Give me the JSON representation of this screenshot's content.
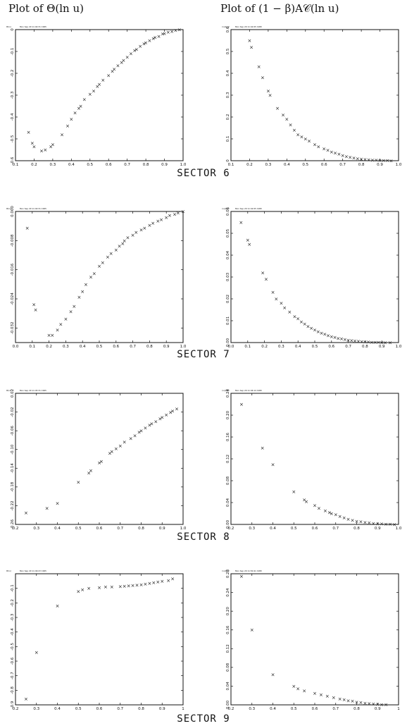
{
  "headers": {
    "left": "Plot of Θ(ln u)",
    "right": "Plot of (1 − β)A𝒞(ln u)"
  },
  "colors": {
    "ink": "#111111",
    "background": "#ffffff"
  },
  "chart_data": [
    {
      "type": "scatter",
      "sector": "SECTOR 6",
      "marker": "×",
      "stamp": "Mon Sep 29 11:40:31 1995",
      "corner": "Θ(ln)",
      "xlim": [
        0.1,
        1.0
      ],
      "ylim": [
        -0.6,
        0.0
      ],
      "xticks": [
        0.1,
        0.2,
        0.3,
        0.4,
        0.5,
        0.6,
        0.7,
        0.8,
        0.9,
        1.0
      ],
      "xtick_labels": [
        "0.1",
        "0.2",
        "0.3",
        "0.4",
        "0.5",
        "0.6",
        "0.7",
        "0.8",
        "0.9",
        "1.0"
      ],
      "yticks": [
        -0.6,
        -0.5,
        -0.4,
        -0.3,
        -0.2,
        -0.1,
        0.0
      ],
      "ytick_labels": [
        "-0.6",
        "-0.5",
        "-0.4",
        "-0.3",
        "-0.2",
        "-0.1",
        "0"
      ],
      "x": [
        0.17,
        0.19,
        0.2,
        0.24,
        0.26,
        0.29,
        0.3,
        0.35,
        0.38,
        0.4,
        0.42,
        0.44,
        0.45,
        0.47,
        0.5,
        0.52,
        0.54,
        0.55,
        0.57,
        0.6,
        0.62,
        0.63,
        0.65,
        0.67,
        0.68,
        0.7,
        0.72,
        0.74,
        0.75,
        0.77,
        0.79,
        0.8,
        0.82,
        0.84,
        0.85,
        0.87,
        0.89,
        0.9,
        0.92,
        0.94,
        0.96,
        0.98
      ],
      "y": [
        -0.47,
        -0.52,
        -0.535,
        -0.555,
        -0.55,
        -0.535,
        -0.525,
        -0.48,
        -0.44,
        -0.41,
        -0.38,
        -0.36,
        -0.35,
        -0.32,
        -0.295,
        -0.28,
        -0.26,
        -0.25,
        -0.23,
        -0.21,
        -0.19,
        -0.18,
        -0.165,
        -0.15,
        -0.14,
        -0.125,
        -0.11,
        -0.095,
        -0.09,
        -0.075,
        -0.065,
        -0.06,
        -0.05,
        -0.04,
        -0.035,
        -0.03,
        -0.02,
        -0.018,
        -0.012,
        -0.008,
        -0.004,
        0.0
      ]
    },
    {
      "type": "scatter",
      "sector": "SECTOR 6",
      "marker": "×",
      "stamp": "Mon Sep 29 11:42:05 1995",
      "corner": "(1-β)A𝒞",
      "xlim": [
        0.1,
        1.0
      ],
      "ylim": [
        0.0,
        0.6
      ],
      "xticks": [
        0.1,
        0.2,
        0.3,
        0.4,
        0.5,
        0.6,
        0.7,
        0.8,
        0.9,
        1.0
      ],
      "xtick_labels": [
        "0.1",
        "0.2",
        "0.3",
        "0.4",
        "0.5",
        "0.6",
        "0.7",
        "0.8",
        "0.9",
        "1.0"
      ],
      "yticks": [
        0,
        0.1,
        0.2,
        0.3,
        0.4,
        0.5,
        0.6
      ],
      "ytick_labels": [
        "0",
        "0.1",
        "0.2",
        "0.3",
        "0.4",
        "0.5",
        "0.6"
      ],
      "x": [
        0.2,
        0.21,
        0.25,
        0.27,
        0.3,
        0.31,
        0.35,
        0.38,
        0.4,
        0.42,
        0.44,
        0.46,
        0.48,
        0.5,
        0.52,
        0.55,
        0.57,
        0.6,
        0.62,
        0.64,
        0.66,
        0.68,
        0.7,
        0.72,
        0.74,
        0.76,
        0.78,
        0.8,
        0.82,
        0.84,
        0.86,
        0.88,
        0.9,
        0.92,
        0.94,
        0.96
      ],
      "y": [
        0.55,
        0.52,
        0.43,
        0.38,
        0.32,
        0.3,
        0.24,
        0.21,
        0.19,
        0.165,
        0.14,
        0.12,
        0.11,
        0.1,
        0.09,
        0.075,
        0.065,
        0.055,
        0.048,
        0.04,
        0.035,
        0.03,
        0.025,
        0.02,
        0.016,
        0.013,
        0.01,
        0.008,
        0.006,
        0.005,
        0.004,
        0.003,
        0.002,
        0.0015,
        0.001,
        0.0005
      ]
    },
    {
      "type": "scatter",
      "sector": "SECTOR 7",
      "marker": "×",
      "stamp": "Mon Sep 29 11:40:31 1995",
      "corner": "Θ(ln)",
      "xlim": [
        0.0,
        1.0
      ],
      "ylim": [
        -0.036,
        0.0
      ],
      "xticks": [
        0,
        0.1,
        0.2,
        0.3,
        0.4,
        0.5,
        0.6,
        0.7,
        0.8,
        0.9,
        1.0
      ],
      "xtick_labels": [
        "0.0",
        "0.1",
        "0.2",
        "0.3",
        "0.4",
        "0.5",
        "0.6",
        "0.7",
        "0.8",
        "0.9",
        "1.0"
      ],
      "yticks": [
        -0.032,
        -0.024,
        -0.016,
        -0.008,
        0.0
      ],
      "ytick_labels": [
        "-0.032",
        "-0.024",
        "-0.016",
        "-0.008",
        "0.000"
      ],
      "x": [
        0.07,
        0.11,
        0.12,
        0.2,
        0.22,
        0.25,
        0.27,
        0.3,
        0.33,
        0.35,
        0.38,
        0.4,
        0.42,
        0.45,
        0.47,
        0.5,
        0.52,
        0.55,
        0.57,
        0.6,
        0.62,
        0.64,
        0.65,
        0.67,
        0.7,
        0.72,
        0.75,
        0.77,
        0.8,
        0.82,
        0.85,
        0.87,
        0.9,
        0.92,
        0.95,
        0.97,
        1.0
      ],
      "y": [
        -0.0045,
        -0.0255,
        -0.027,
        -0.034,
        -0.034,
        -0.0325,
        -0.031,
        -0.0295,
        -0.0275,
        -0.026,
        -0.0235,
        -0.022,
        -0.02,
        -0.018,
        -0.017,
        -0.015,
        -0.014,
        -0.0125,
        -0.0115,
        -0.0105,
        -0.0095,
        -0.0088,
        -0.008,
        -0.0072,
        -0.0065,
        -0.0057,
        -0.005,
        -0.0045,
        -0.0038,
        -0.0032,
        -0.0026,
        -0.0022,
        -0.0016,
        -0.0011,
        -0.0008,
        -0.0004,
        0.0
      ]
    },
    {
      "type": "scatter",
      "sector": "SECTOR 7",
      "marker": "×",
      "stamp": "Mon Sep 29 11:42:05 1995",
      "corner": "(1-β)A𝒞",
      "xlim": [
        0.0,
        1.0
      ],
      "ylim": [
        0.0,
        0.06
      ],
      "xticks": [
        0,
        0.1,
        0.2,
        0.3,
        0.4,
        0.5,
        0.6,
        0.7,
        0.8,
        0.9,
        1.0
      ],
      "xtick_labels": [
        "0.0",
        "0.1",
        "0.2",
        "0.3",
        "0.4",
        "0.5",
        "0.6",
        "0.7",
        "0.8",
        "0.9",
        "1.0"
      ],
      "yticks": [
        0,
        0.01,
        0.02,
        0.03,
        0.04,
        0.05,
        0.06
      ],
      "ytick_labels": [
        "0.00",
        "0.01",
        "0.02",
        "0.03",
        "0.04",
        "0.05",
        "0.06"
      ],
      "x": [
        0.06,
        0.1,
        0.11,
        0.19,
        0.21,
        0.25,
        0.27,
        0.3,
        0.32,
        0.35,
        0.38,
        0.4,
        0.42,
        0.44,
        0.46,
        0.48,
        0.5,
        0.52,
        0.54,
        0.56,
        0.58,
        0.6,
        0.62,
        0.64,
        0.66,
        0.68,
        0.7,
        0.72,
        0.74,
        0.76,
        0.78,
        0.8,
        0.82,
        0.84,
        0.86,
        0.88,
        0.9,
        0.92,
        0.95
      ],
      "y": [
        0.055,
        0.047,
        0.045,
        0.032,
        0.029,
        0.023,
        0.02,
        0.018,
        0.016,
        0.014,
        0.012,
        0.011,
        0.0095,
        0.0085,
        0.0075,
        0.0066,
        0.0058,
        0.005,
        0.0044,
        0.0038,
        0.0033,
        0.0028,
        0.0024,
        0.002,
        0.0017,
        0.0014,
        0.0012,
        0.001,
        0.0008,
        0.0006,
        0.0005,
        0.0004,
        0.0003,
        0.0002,
        0.00015,
        0.0001,
        7e-05,
        4e-05,
        2e-05
      ]
    },
    {
      "type": "scatter",
      "sector": "SECTOR 8",
      "marker": "×",
      "stamp": "Mon Sep 29 11:45:31 1995",
      "corner": "Θ(ln)",
      "xlim": [
        0.2,
        1.0
      ],
      "ylim": [
        -0.26,
        0.02
      ],
      "xticks": [
        0.2,
        0.3,
        0.4,
        0.5,
        0.6,
        0.7,
        0.8,
        0.9,
        1.0
      ],
      "xtick_labels": [
        "0.2",
        "0.3",
        "0.4",
        "0.5",
        "0.6",
        "0.7",
        "0.8",
        "0.9",
        "1.0"
      ],
      "yticks": [
        -0.26,
        -0.22,
        -0.18,
        -0.14,
        -0.1,
        -0.06,
        -0.02,
        0.02
      ],
      "ytick_labels": [
        "-0.26",
        "-0.22",
        "-0.18",
        "-0.14",
        "-0.10",
        "-0.06",
        "-0.02",
        "0.02"
      ],
      "x": [
        0.25,
        0.35,
        0.4,
        0.5,
        0.55,
        0.56,
        0.6,
        0.61,
        0.65,
        0.66,
        0.68,
        0.7,
        0.72,
        0.75,
        0.77,
        0.79,
        0.8,
        0.82,
        0.84,
        0.85,
        0.87,
        0.89,
        0.9,
        0.92,
        0.94,
        0.95,
        0.97
      ],
      "y": [
        -0.235,
        -0.225,
        -0.215,
        -0.17,
        -0.15,
        -0.145,
        -0.128,
        -0.125,
        -0.108,
        -0.104,
        -0.098,
        -0.092,
        -0.084,
        -0.076,
        -0.07,
        -0.063,
        -0.06,
        -0.054,
        -0.048,
        -0.045,
        -0.04,
        -0.034,
        -0.031,
        -0.026,
        -0.021,
        -0.018,
        -0.013
      ]
    },
    {
      "type": "scatter",
      "sector": "SECTOR 8",
      "marker": "×",
      "stamp": "Mon Sep 29 11:46:14 1995",
      "corner": "(1-β)A𝒞",
      "xlim": [
        0.2,
        1.0
      ],
      "ylim": [
        0.0,
        0.24
      ],
      "xticks": [
        0.2,
        0.3,
        0.4,
        0.5,
        0.6,
        0.7,
        0.8,
        0.9,
        1.0
      ],
      "xtick_labels": [
        "0.2",
        "0.3",
        "0.4",
        "0.5",
        "0.6",
        "0.7",
        "0.8",
        "0.9",
        "1.0"
      ],
      "yticks": [
        0,
        0.04,
        0.08,
        0.12,
        0.16,
        0.2,
        0.24
      ],
      "ytick_labels": [
        "0.00",
        "0.04",
        "0.08",
        "0.12",
        "0.16",
        "0.20",
        "0.24"
      ],
      "x": [
        0.25,
        0.35,
        0.4,
        0.5,
        0.55,
        0.56,
        0.6,
        0.62,
        0.65,
        0.67,
        0.68,
        0.7,
        0.72,
        0.74,
        0.76,
        0.78,
        0.8,
        0.82,
        0.84,
        0.86,
        0.88,
        0.9,
        0.92,
        0.94,
        0.96,
        0.98
      ],
      "y": [
        0.22,
        0.14,
        0.11,
        0.06,
        0.045,
        0.042,
        0.035,
        0.03,
        0.025,
        0.022,
        0.02,
        0.018,
        0.015,
        0.012,
        0.01,
        0.008,
        0.006,
        0.005,
        0.004,
        0.003,
        0.002,
        0.0015,
        0.001,
        0.0006,
        0.0004,
        0.0002
      ]
    },
    {
      "type": "scatter",
      "sector": "SECTOR 9",
      "marker": "×",
      "stamp": "Mon Sep 29 11:49:23 1995",
      "corner": "Θ(ln)",
      "xlim": [
        0.2,
        1.0
      ],
      "ylim": [
        -0.9,
        0.0
      ],
      "xticks": [
        0.2,
        0.3,
        0.4,
        0.5,
        0.6,
        0.7,
        0.8,
        0.9,
        1.0
      ],
      "xtick_labels": [
        "0.2",
        "0.3",
        "0.4",
        "0.5",
        "0.6",
        "0.7",
        "0.8",
        "0.9",
        "1"
      ],
      "yticks": [
        -0.9,
        -0.8,
        -0.7,
        -0.6,
        -0.5,
        -0.4,
        -0.3,
        -0.2,
        -0.1
      ],
      "ytick_labels": [
        "-0.9",
        "-0.8",
        "-0.7",
        "-0.6",
        "-0.5",
        "-0.4",
        "-0.3",
        "-0.2",
        "-0.1"
      ],
      "x": [
        0.25,
        0.3,
        0.4,
        0.5,
        0.52,
        0.55,
        0.6,
        0.63,
        0.66,
        0.7,
        0.72,
        0.74,
        0.76,
        0.78,
        0.8,
        0.82,
        0.84,
        0.86,
        0.88,
        0.9,
        0.93,
        0.95
      ],
      "y": [
        -0.86,
        -0.54,
        -0.22,
        -0.12,
        -0.11,
        -0.1,
        -0.095,
        -0.09,
        -0.09,
        -0.088,
        -0.085,
        -0.082,
        -0.08,
        -0.078,
        -0.075,
        -0.07,
        -0.065,
        -0.06,
        -0.055,
        -0.05,
        -0.045,
        -0.035
      ]
    },
    {
      "type": "scatter",
      "sector": "SECTOR 9",
      "marker": "×",
      "stamp": "Mon Sep 29 11:50:41 1995",
      "corner": "(1-β)A𝒞",
      "xlim": [
        0.2,
        1.0
      ],
      "ylim": [
        0.0,
        0.28
      ],
      "xticks": [
        0.2,
        0.3,
        0.4,
        0.5,
        0.6,
        0.7,
        0.8,
        0.9,
        1.0
      ],
      "xtick_labels": [
        "0.2",
        "0.3",
        "0.4",
        "0.5",
        "0.6",
        "0.7",
        "0.8",
        "0.9",
        "1"
      ],
      "yticks": [
        0,
        0.04,
        0.08,
        0.12,
        0.16,
        0.2,
        0.24,
        0.28
      ],
      "ytick_labels": [
        "0.00",
        "0.04",
        "0.08",
        "0.12",
        "0.16",
        "0.20",
        "0.24",
        "0.28"
      ],
      "x": [
        0.25,
        0.3,
        0.4,
        0.5,
        0.52,
        0.55,
        0.6,
        0.63,
        0.66,
        0.69,
        0.72,
        0.74,
        0.76,
        0.78,
        0.8,
        0.82,
        0.84,
        0.86,
        0.88,
        0.9,
        0.92,
        0.94
      ],
      "y": [
        0.275,
        0.16,
        0.065,
        0.04,
        0.035,
        0.03,
        0.025,
        0.022,
        0.019,
        0.016,
        0.013,
        0.011,
        0.009,
        0.008,
        0.006,
        0.005,
        0.004,
        0.003,
        0.002,
        0.0015,
        0.001,
        0.0005
      ]
    }
  ]
}
